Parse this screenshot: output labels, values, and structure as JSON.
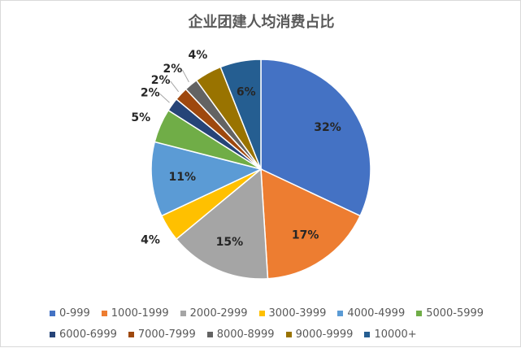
{
  "chart_data": {
    "type": "pie",
    "title": "企业团建人均消费占比",
    "categories": [
      "0-999",
      "1000-1999",
      "2000-2999",
      "3000-3999",
      "4000-4999",
      "5000-5999",
      "6000-6999",
      "7000-7999",
      "8000-8999",
      "9000-9999",
      "10000+"
    ],
    "values": [
      32,
      17,
      15,
      4,
      11,
      5,
      2,
      2,
      2,
      4,
      6
    ],
    "labels": [
      "32%",
      "17%",
      "15%",
      "4%",
      "11%",
      "5%",
      "2%",
      "2%",
      "2%",
      "4%",
      "6%"
    ],
    "colors": [
      "#4472C4",
      "#ED7D31",
      "#A5A5A5",
      "#FFC000",
      "#5B9BD5",
      "#70AD47",
      "#264478",
      "#9E480E",
      "#636363",
      "#997300",
      "#255E91"
    ],
    "legend": "bottom"
  }
}
